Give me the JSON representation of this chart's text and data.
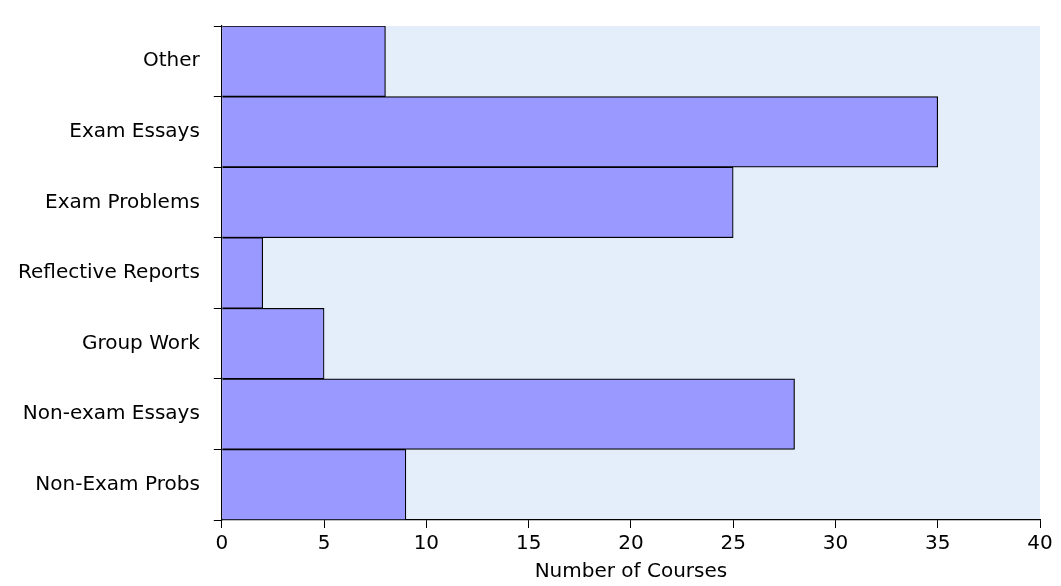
{
  "chart_data": {
    "type": "bar",
    "orientation": "horizontal",
    "xlabel": "Number of Courses",
    "categories": [
      "Other",
      "Exam Essays",
      "Exam Problems",
      "Reflective Reports",
      "Group Work",
      "Non-exam Essays",
      "Non-Exam Probs"
    ],
    "values": [
      8,
      35,
      25,
      2,
      5,
      28,
      9
    ],
    "color": "#9999ff",
    "xlim": [
      0,
      40
    ],
    "xticks": [
      0,
      5,
      10,
      15,
      20,
      25,
      30,
      35,
      40
    ],
    "grid": false
  }
}
